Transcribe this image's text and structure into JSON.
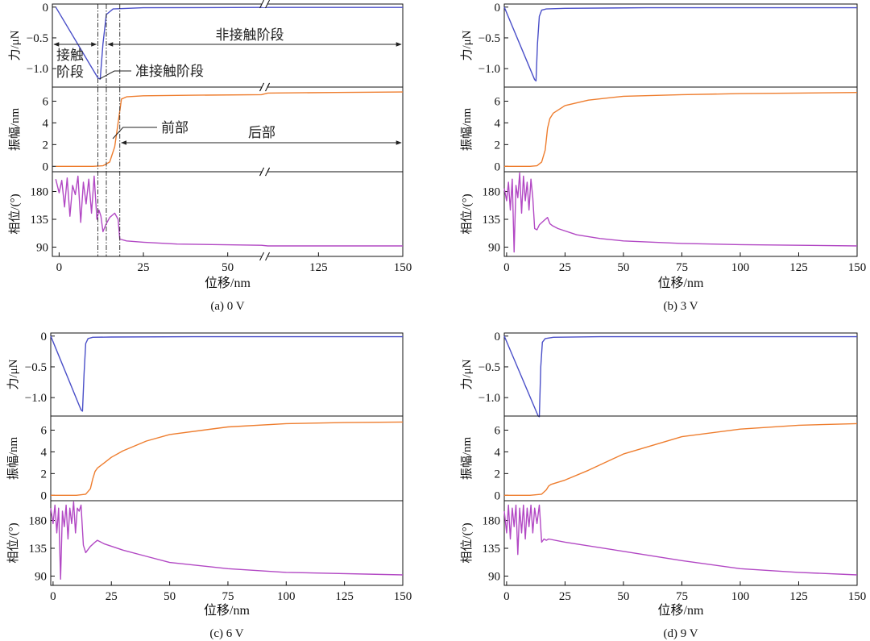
{
  "figure": {
    "colors": {
      "force": "#4a4fc8",
      "amplitude": "#ee7d2e",
      "phase": "#b248c4",
      "axis": "#111111",
      "annotation": "#222222"
    },
    "panel_axis_labels": {
      "force": "力/μN",
      "amplitude": "振幅/nm",
      "phase": "相位/(°)",
      "x": "位移/nm"
    },
    "annotations": {
      "contact_line1": "接触",
      "contact_line2": "阶段",
      "quasi_contact": "准接触阶段",
      "non_contact": "非接触阶段",
      "front": "前部",
      "rear": "后部"
    }
  },
  "chart_data": [
    {
      "type": "line",
      "caption": "(a) 0 V",
      "xlabel": "位移/nm",
      "x_ticks": [
        0,
        25,
        50,
        125,
        150
      ],
      "x_range": [
        -2,
        150
      ],
      "broken_x_axis": {
        "gap": [
          60,
          110
        ]
      },
      "subplots": [
        {
          "name": "force",
          "ylabel": "力/μN",
          "ylim": [
            -1.3,
            0.05
          ],
          "y_ticks": [
            0,
            -0.5,
            -1.0
          ],
          "series": [
            {
              "name": "force",
              "x": [
                -1,
                11.5,
                12.2,
                13,
                14,
                16,
                25,
                60,
                110,
                150
              ],
              "y": [
                0,
                -1.15,
                -1.17,
                -0.6,
                -0.12,
                -0.03,
                -0.01,
                -0.005,
                -0.005,
                -0.005
              ]
            }
          ]
        },
        {
          "name": "amplitude",
          "ylabel": "振幅/nm",
          "ylim": [
            -0.5,
            7.3
          ],
          "y_ticks": [
            0,
            2,
            4,
            6
          ],
          "series": [
            {
              "name": "amplitude",
              "x": [
                -1,
                10,
                13,
                15,
                16.5,
                17.5,
                18.5,
                20,
                25,
                40,
                60,
                110,
                130,
                150
              ],
              "y": [
                0,
                0,
                0.05,
                0.4,
                1.8,
                4.0,
                6.2,
                6.4,
                6.5,
                6.55,
                6.6,
                6.75,
                6.8,
                6.85
              ]
            }
          ]
        },
        {
          "name": "phase",
          "ylabel": "相位/(°)",
          "ylim": [
            75,
            212
          ],
          "y_ticks": [
            90,
            135,
            180
          ],
          "series": [
            {
              "name": "phase",
              "x": [
                -1,
                0,
                0.8,
                1.6,
                2.4,
                3.2,
                4.0,
                4.8,
                5.6,
                6.4,
                7.2,
                8.0,
                8.8,
                9.6,
                10.4,
                11.2,
                11.8,
                12.4,
                13,
                14,
                15,
                16.5,
                17.5,
                18,
                20,
                25,
                35,
                60,
                110,
                150
              ],
              "y": [
                200,
                178,
                198,
                155,
                202,
                140,
                190,
                175,
                205,
                130,
                195,
                160,
                200,
                145,
                205,
                135,
                150,
                140,
                115,
                128,
                138,
                145,
                135,
                103,
                100,
                98,
                95,
                93,
                92,
                92
              ]
            }
          ]
        }
      ],
      "stage_markers_x": [
        11.5,
        14,
        18
      ]
    },
    {
      "type": "line",
      "caption": "(b) 3 V",
      "xlabel": "位移/nm",
      "x_ticks": [
        0,
        25,
        50,
        75,
        100,
        125,
        150
      ],
      "x_range": [
        -1,
        150
      ],
      "subplots": [
        {
          "name": "force",
          "ylabel": "力/μN",
          "ylim": [
            -1.3,
            0.05
          ],
          "y_ticks": [
            0,
            -0.5,
            -1.0
          ],
          "series": [
            {
              "name": "force",
              "x": [
                -1,
                12,
                12.6,
                13.2,
                14,
                15,
                17,
                25,
                60,
                150
              ],
              "y": [
                0,
                -1.18,
                -1.2,
                -0.6,
                -0.15,
                -0.05,
                -0.03,
                -0.02,
                -0.01,
                -0.01
              ]
            }
          ]
        },
        {
          "name": "amplitude",
          "ylabel": "振幅/nm",
          "ylim": [
            -0.5,
            7.3
          ],
          "y_ticks": [
            0,
            2,
            4,
            6
          ],
          "series": [
            {
              "name": "amplitude",
              "x": [
                -1,
                10,
                13,
                15,
                16.5,
                17.5,
                18.5,
                20,
                25,
                35,
                50,
                75,
                100,
                125,
                150
              ],
              "y": [
                0,
                0,
                0.05,
                0.4,
                1.5,
                3.5,
                4.4,
                4.9,
                5.6,
                6.1,
                6.45,
                6.6,
                6.7,
                6.75,
                6.8
              ]
            }
          ]
        },
        {
          "name": "phase",
          "ylabel": "相位/(°)",
          "ylim": [
            75,
            212
          ],
          "y_ticks": [
            90,
            135,
            180
          ],
          "series": [
            {
              "name": "phase",
              "x": [
                -1,
                0,
                0.8,
                1.6,
                2.4,
                3.2,
                4.0,
                4.8,
                5.6,
                6.4,
                7.2,
                8.0,
                8.8,
                9.6,
                10.4,
                11.2,
                12,
                13,
                14,
                16,
                17.5,
                18.5,
                19.5,
                22,
                30,
                40,
                50,
                75,
                100,
                150
              ],
              "y": [
                185,
                165,
                195,
                150,
                200,
                82,
                190,
                170,
                210,
                145,
                205,
                165,
                195,
                150,
                200,
                170,
                120,
                118,
                126,
                133,
                138,
                128,
                125,
                120,
                110,
                104,
                100,
                96,
                94,
                92
              ]
            }
          ]
        }
      ]
    },
    {
      "type": "line",
      "caption": "(c) 6 V",
      "xlabel": "位移/nm",
      "x_ticks": [
        0,
        25,
        50,
        75,
        100,
        125,
        150
      ],
      "x_range": [
        -1,
        150
      ],
      "subplots": [
        {
          "name": "force",
          "ylabel": "力/μN",
          "ylim": [
            -1.3,
            0.05
          ],
          "y_ticks": [
            0,
            -0.5,
            -1.0
          ],
          "series": [
            {
              "name": "force",
              "x": [
                -1,
                12,
                12.6,
                13.3,
                14,
                15,
                17,
                25,
                60,
                150
              ],
              "y": [
                0,
                -1.2,
                -1.22,
                -0.6,
                -0.12,
                -0.04,
                -0.02,
                -0.015,
                -0.01,
                -0.01
              ]
            }
          ]
        },
        {
          "name": "amplitude",
          "ylabel": "振幅/nm",
          "ylim": [
            -0.5,
            7.3
          ],
          "y_ticks": [
            0,
            2,
            4,
            6
          ],
          "series": [
            {
              "name": "amplitude",
              "x": [
                -1,
                10,
                14,
                16,
                17,
                18,
                19,
                22,
                25,
                30,
                40,
                50,
                75,
                100,
                125,
                150
              ],
              "y": [
                0,
                0,
                0.1,
                0.6,
                1.5,
                2.2,
                2.5,
                3.0,
                3.5,
                4.1,
                5.0,
                5.6,
                6.3,
                6.6,
                6.7,
                6.75
              ]
            }
          ]
        },
        {
          "name": "phase",
          "ylabel": "相位/(°)",
          "ylim": [
            75,
            212
          ],
          "y_ticks": [
            90,
            135,
            180
          ],
          "series": [
            {
              "name": "phase",
              "x": [
                -1,
                0,
                0.8,
                1.6,
                2.4,
                3.2,
                4.0,
                4.8,
                5.6,
                6.4,
                7.2,
                8.0,
                8.8,
                9.6,
                10.4,
                11.2,
                12,
                13,
                14,
                16,
                18,
                19,
                22,
                30,
                40,
                50,
                75,
                100,
                150
              ],
              "y": [
                200,
                175,
                205,
                160,
                200,
                85,
                195,
                170,
                205,
                150,
                200,
                175,
                210,
                160,
                200,
                195,
                205,
                140,
                128,
                138,
                145,
                148,
                142,
                132,
                122,
                112,
                102,
                96,
                92
              ]
            }
          ]
        }
      ]
    },
    {
      "type": "line",
      "caption": "(d) 9 V",
      "xlabel": "位移/nm",
      "x_ticks": [
        0,
        25,
        50,
        75,
        100,
        125,
        150
      ],
      "x_range": [
        -1,
        150
      ],
      "subplots": [
        {
          "name": "force",
          "ylabel": "力/μN",
          "ylim": [
            -1.3,
            0.05
          ],
          "y_ticks": [
            0,
            -0.5,
            -1.0
          ],
          "series": [
            {
              "name": "force",
              "x": [
                -1,
                13.5,
                14,
                14.6,
                15.3,
                16.5,
                20,
                40,
                150
              ],
              "y": [
                0,
                -1.3,
                -1.31,
                -0.5,
                -0.1,
                -0.04,
                -0.02,
                -0.01,
                -0.01
              ]
            }
          ]
        },
        {
          "name": "amplitude",
          "ylabel": "振幅/nm",
          "ylim": [
            -0.5,
            7.3
          ],
          "y_ticks": [
            0,
            2,
            4,
            6
          ],
          "series": [
            {
              "name": "amplitude",
              "x": [
                -1,
                10,
                15,
                17,
                18,
                19,
                25,
                35,
                50,
                75,
                100,
                125,
                150
              ],
              "y": [
                0,
                0,
                0.1,
                0.5,
                0.85,
                1.0,
                1.4,
                2.3,
                3.8,
                5.4,
                6.1,
                6.45,
                6.6
              ]
            }
          ]
        },
        {
          "name": "phase",
          "ylabel": "相位/(°)",
          "ylim": [
            75,
            212
          ],
          "y_ticks": [
            90,
            135,
            180
          ],
          "series": [
            {
              "name": "phase",
              "x": [
                -1,
                0,
                0.8,
                1.6,
                2.4,
                3.2,
                4.0,
                4.8,
                5.6,
                6.4,
                7.2,
                8.0,
                8.8,
                9.6,
                10.4,
                11.2,
                12,
                13,
                14,
                15,
                16,
                17,
                18,
                25,
                50,
                75,
                100,
                125,
                150
              ],
              "y": [
                195,
                160,
                205,
                150,
                200,
                170,
                205,
                125,
                200,
                160,
                205,
                150,
                200,
                170,
                205,
                160,
                200,
                175,
                205,
                145,
                150,
                148,
                150,
                145,
                130,
                115,
                102,
                96,
                92
              ]
            }
          ]
        }
      ]
    }
  ]
}
